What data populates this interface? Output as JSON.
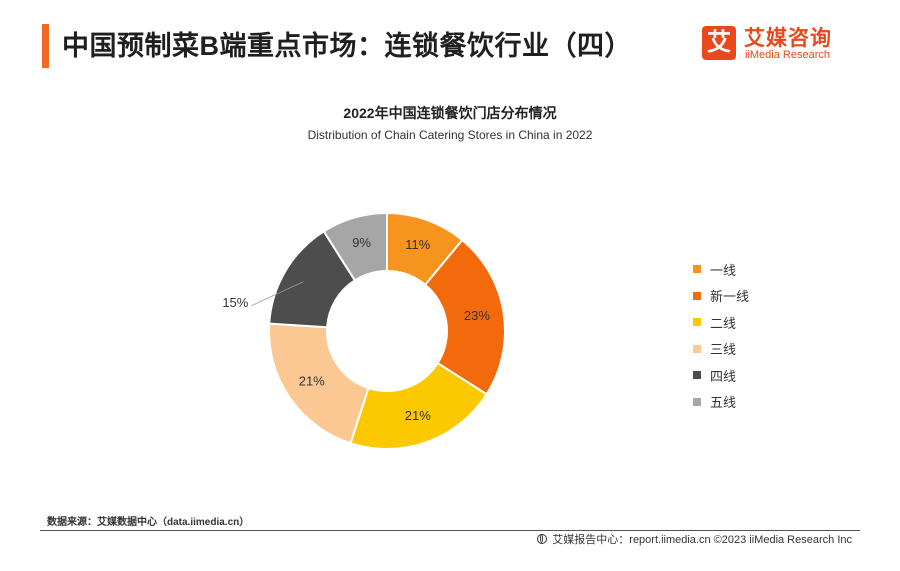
{
  "header": {
    "title": "中国预制菜B端重点市场：连锁餐饮行业（四）",
    "logo_mark": "艾",
    "logo_cn": "艾媒咨询",
    "logo_en": "iiMedia Research"
  },
  "chart_data": {
    "type": "pie",
    "donut": true,
    "title": "2022年中国连锁餐饮门店分布情况",
    "subtitle": "Distribution of Chain Catering Stores in China in 2022",
    "categories": [
      "一线",
      "新一线",
      "二线",
      "三线",
      "四线",
      "五线"
    ],
    "values": [
      11,
      23,
      21,
      21,
      15,
      9
    ],
    "labels": [
      "11%",
      "23%",
      "21%",
      "21%",
      "15%",
      "9%"
    ],
    "colors": [
      "#f7941d",
      "#f26a0c",
      "#fcc800",
      "#fbc793",
      "#4d4d4d",
      "#a6a6a6"
    ],
    "legend_position": "right"
  },
  "footer": {
    "source": "数据来源：艾媒数据中心（data.iimedia.cn）",
    "report_center": "艾媒报告中心：report.iimedia.cn  ©2023  iiMedia Research  Inc"
  }
}
